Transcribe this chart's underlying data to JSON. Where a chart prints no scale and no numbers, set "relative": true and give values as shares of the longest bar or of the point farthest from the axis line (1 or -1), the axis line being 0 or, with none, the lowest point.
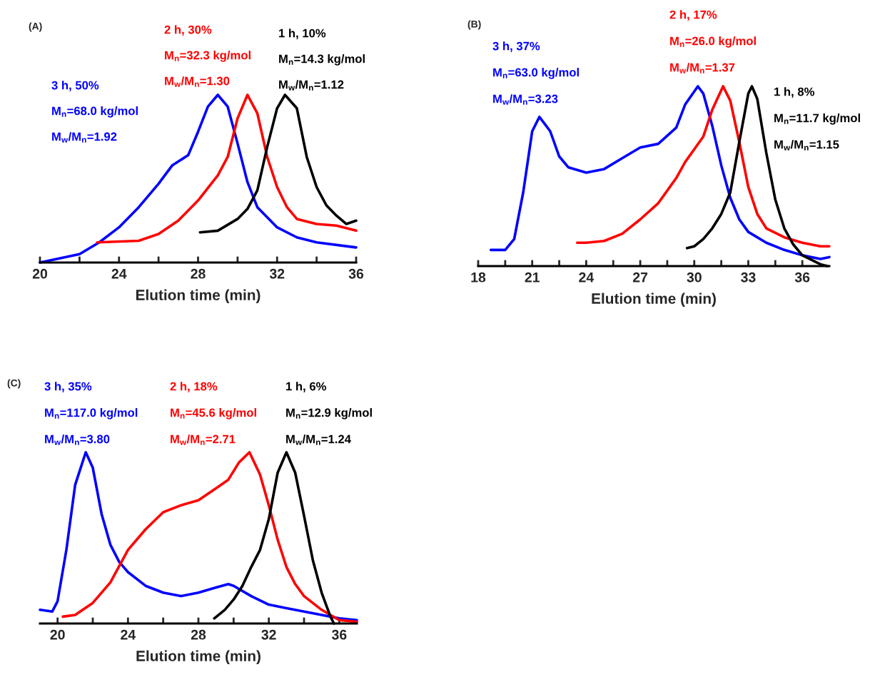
{
  "chart_data": [
    {
      "type": "line",
      "title": "(A)",
      "xlabel": "Elution time (min)",
      "relative": true,
      "grid": false,
      "legend": false,
      "marker": "none",
      "line_style": "solid",
      "tick_labels": "x",
      "xlim": [
        20,
        36
      ],
      "xticks": [
        20,
        {
          "value": 22,
          "label": null
        },
        24,
        {
          "value": 26,
          "label": null
        },
        28,
        {
          "value": 30,
          "label": null
        },
        32,
        {
          "value": 34,
          "label": null
        },
        36
      ],
      "series": [
        {
          "color": "#0000ff",
          "x": [
            20,
            22,
            23,
            24,
            25,
            26,
            26.7,
            27.5,
            28,
            28.5,
            29,
            29.5,
            30,
            30.5,
            31,
            32,
            33,
            34,
            36
          ],
          "values": [
            0,
            0.05,
            0.12,
            0.21,
            0.33,
            0.47,
            0.58,
            0.64,
            0.78,
            0.93,
            1.0,
            0.93,
            0.71,
            0.48,
            0.33,
            0.21,
            0.15,
            0.12,
            0.09
          ]
        },
        {
          "color": "#ff0000",
          "x": [
            22.9,
            25,
            26,
            27,
            28,
            29,
            29.5,
            30,
            30.5,
            31,
            31.5,
            32,
            32.5,
            33,
            34,
            35,
            36
          ],
          "values": [
            0.12,
            0.13,
            0.17,
            0.25,
            0.37,
            0.52,
            0.63,
            0.86,
            1.0,
            0.89,
            0.63,
            0.45,
            0.33,
            0.26,
            0.23,
            0.22,
            0.19
          ]
        },
        {
          "color": "#000000",
          "x": [
            28.1,
            29,
            30,
            30.5,
            31,
            31.5,
            32,
            32.4,
            33,
            33.5,
            34,
            34.5,
            35,
            35.5,
            36
          ],
          "values": [
            0.18,
            0.19,
            0.26,
            0.32,
            0.43,
            0.69,
            0.92,
            1.0,
            0.92,
            0.63,
            0.45,
            0.34,
            0.28,
            0.23,
            0.25
          ]
        }
      ],
      "annotations": [
        "3 h, 50%",
        "M$_{n}$=68.0 kg/mol",
        "M$_{w}$/M$_{n}$=1.92",
        "2 h, 30%",
        "M$_{n}$=32.3 kg/mol",
        "M$_{w}$/M$_{n}$=1.30",
        "1 h, 10%",
        "M$_{n}$=14.3 kg/mol",
        "M$_{w}$/M$_{n}$=1.12"
      ]
    },
    {
      "type": "line",
      "title": "(B)",
      "xlabel": "Elution time (min)",
      "relative": true,
      "grid": false,
      "legend": false,
      "marker": "none",
      "line_style": "solid",
      "tick_labels": "x",
      "xlim": [
        18,
        37.5
      ],
      "xticks": [
        18,
        {
          "value": 19.5,
          "label": null
        },
        21,
        {
          "value": 22.5,
          "label": null
        },
        24,
        {
          "value": 25.5,
          "label": null
        },
        27,
        {
          "value": 28.5,
          "label": null
        },
        30,
        {
          "value": 31.5,
          "label": null
        },
        33,
        {
          "value": 34.5,
          "label": null
        },
        36
      ],
      "series": [
        {
          "color": "#0000ff",
          "x": [
            18.7,
            19.5,
            20,
            20.5,
            21,
            21.4,
            22,
            22.5,
            23,
            24,
            25,
            26,
            27,
            28,
            29,
            29.5,
            30.2,
            30.5,
            31,
            31.5,
            32,
            32.5,
            33,
            34,
            35,
            36,
            37,
            37.5
          ],
          "values": [
            0.09,
            0.09,
            0.15,
            0.41,
            0.75,
            0.83,
            0.75,
            0.61,
            0.55,
            0.52,
            0.54,
            0.6,
            0.66,
            0.68,
            0.77,
            0.9,
            1.0,
            0.96,
            0.78,
            0.56,
            0.38,
            0.26,
            0.19,
            0.13,
            0.09,
            0.06,
            0.04,
            0.05
          ]
        },
        {
          "color": "#ff0000",
          "x": [
            23.5,
            24,
            25,
            26,
            27,
            28,
            29,
            29.5,
            30,
            30.5,
            31,
            31.6,
            32,
            32.5,
            33,
            33.5,
            34,
            35,
            36,
            37,
            37.5
          ],
          "values": [
            0.13,
            0.13,
            0.14,
            0.18,
            0.26,
            0.35,
            0.49,
            0.58,
            0.65,
            0.72,
            0.87,
            1.0,
            0.92,
            0.69,
            0.44,
            0.29,
            0.21,
            0.16,
            0.13,
            0.11,
            0.11
          ]
        },
        {
          "color": "#000000",
          "x": [
            29.6,
            30,
            30.5,
            31,
            31.5,
            32,
            32.5,
            33,
            33.2,
            33.5,
            34,
            34.5,
            35,
            35.5,
            36,
            37,
            37.4
          ],
          "values": [
            0.1,
            0.11,
            0.15,
            0.21,
            0.29,
            0.41,
            0.69,
            0.96,
            1.0,
            0.93,
            0.63,
            0.37,
            0.21,
            0.12,
            0.06,
            0.01,
            0
          ]
        }
      ],
      "annotations": [
        "3 h, 37%",
        "M$_{n}$=63.0 kg/mol",
        "M$_{w}$/M$_{n}$=3.23",
        "2 h, 17%",
        "M$_{n}$=26.0 kg/mol",
        "M$_{w}$/M$_{n}$=1.37",
        "1 h, 8%",
        "M$_{n}$=11.7 kg/mol",
        "M$_{w}$/M$_{n}$=1.15"
      ]
    },
    {
      "type": "line",
      "title": "(C)",
      "xlabel": "Elution time (min)",
      "relative": true,
      "grid": false,
      "legend": false,
      "marker": "none",
      "line_style": "solid",
      "tick_labels": "x",
      "xlim": [
        19,
        37
      ],
      "xticks": [
        20,
        {
          "value": 22,
          "label": null
        },
        24,
        {
          "value": 26,
          "label": null
        },
        28,
        {
          "value": 30,
          "label": null
        },
        32,
        {
          "value": 34,
          "label": null
        },
        36
      ],
      "series": [
        {
          "color": "#0000ff",
          "x": [
            19,
            19.7,
            20,
            20.5,
            21,
            21.6,
            22,
            22.5,
            23,
            23.5,
            24,
            25,
            26,
            27,
            28,
            29,
            29.7,
            30,
            31,
            32,
            33,
            34,
            35,
            36,
            37
          ],
          "values": [
            0.08,
            0.07,
            0.13,
            0.43,
            0.81,
            1.0,
            0.91,
            0.64,
            0.46,
            0.36,
            0.3,
            0.22,
            0.18,
            0.16,
            0.18,
            0.21,
            0.23,
            0.22,
            0.16,
            0.11,
            0.09,
            0.07,
            0.05,
            0.03,
            0.02
          ]
        },
        {
          "color": "#ff0000",
          "x": [
            20.3,
            21,
            22,
            23,
            24,
            25,
            26,
            27,
            28,
            29,
            29.7,
            30.3,
            30.9,
            31.5,
            32,
            32.5,
            33,
            33.5,
            34,
            35,
            36,
            37
          ],
          "values": [
            0.04,
            0.05,
            0.12,
            0.24,
            0.43,
            0.55,
            0.65,
            0.69,
            0.72,
            0.79,
            0.84,
            0.94,
            1.0,
            0.87,
            0.69,
            0.49,
            0.33,
            0.23,
            0.16,
            0.08,
            0.02,
            0.01
          ]
        },
        {
          "color": "#000000",
          "x": [
            28.9,
            29.5,
            30,
            30.5,
            31,
            31.5,
            32,
            32.5,
            33,
            33.5,
            34,
            34.5,
            35,
            35.5,
            35.7
          ],
          "values": [
            0.03,
            0.08,
            0.14,
            0.22,
            0.33,
            0.43,
            0.61,
            0.88,
            1.0,
            0.88,
            0.63,
            0.37,
            0.18,
            0.04,
            0
          ]
        }
      ],
      "annotations": [
        "3 h, 35%",
        "M$_{n}$=117.0 kg/mol",
        "M$_{w}$/M$_{n}$=3.80",
        "2 h, 18%",
        "M$_{n}$=45.6 kg/mol",
        "M$_{w}$/M$_{n}$=2.71",
        "1 h, 6%",
        "M$_{n}$=12.9 kg/mol",
        "M$_{w}$/M$_{n}$=1.24"
      ]
    }
  ]
}
